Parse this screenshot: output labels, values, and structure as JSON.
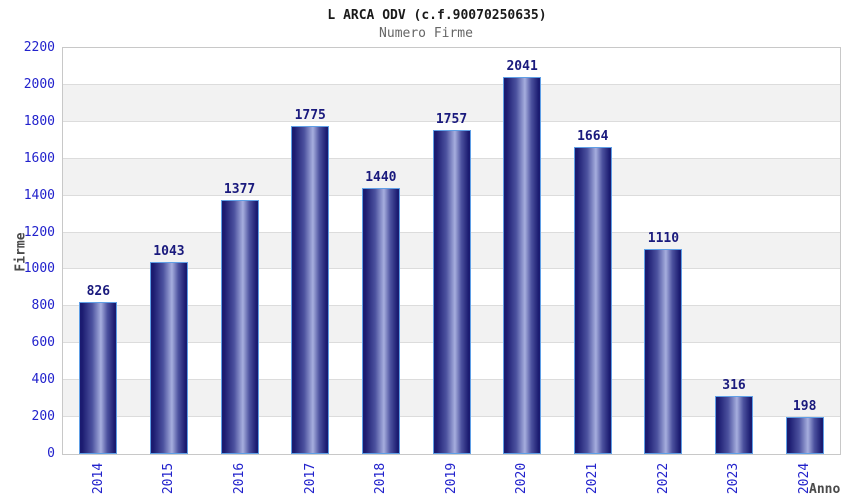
{
  "header": {
    "title": "L ARCA ODV (c.f.90070250635)",
    "subtitle": "Numero Firme"
  },
  "chart_data": {
    "type": "bar",
    "title": "L ARCA ODV (c.f.90070250635)",
    "subtitle": "Numero Firme",
    "categories": [
      "2014",
      "2015",
      "2016",
      "2017",
      "2018",
      "2019",
      "2020",
      "2021",
      "2022",
      "2023",
      "2024"
    ],
    "values": [
      826,
      1043,
      1377,
      1775,
      1440,
      1757,
      2041,
      1664,
      1110,
      316,
      198
    ],
    "xlabel": "Anno",
    "ylabel": "Firme",
    "ylim": [
      0,
      2200
    ],
    "ytick_step": 200,
    "yticks": [
      0,
      200,
      400,
      600,
      800,
      1000,
      1200,
      1400,
      1600,
      1800,
      2000,
      2200
    ],
    "grid": true,
    "grid_style": "alternating horizontal bands with gridlines every 200",
    "legend_position": "none",
    "bar_value_labels_shown": true
  },
  "colors": {
    "background": "#ffffff",
    "title_color": "#1a1a1a",
    "subtitle_color": "#666666",
    "axis_tick_label": "#2222cc",
    "axis_title_color": "#4a4a4a",
    "value_label": "#1a1a7d",
    "bar_dark": "#1b1b70",
    "bar_mid": "#4c529f",
    "bar_highlight": "#a6aede",
    "bar_border": "#5f9fe6",
    "band_gray": "#f2f2f2",
    "band_white": "#ffffff",
    "gridline": "#dcdcdc",
    "plot_border": "#c8c8c8"
  }
}
